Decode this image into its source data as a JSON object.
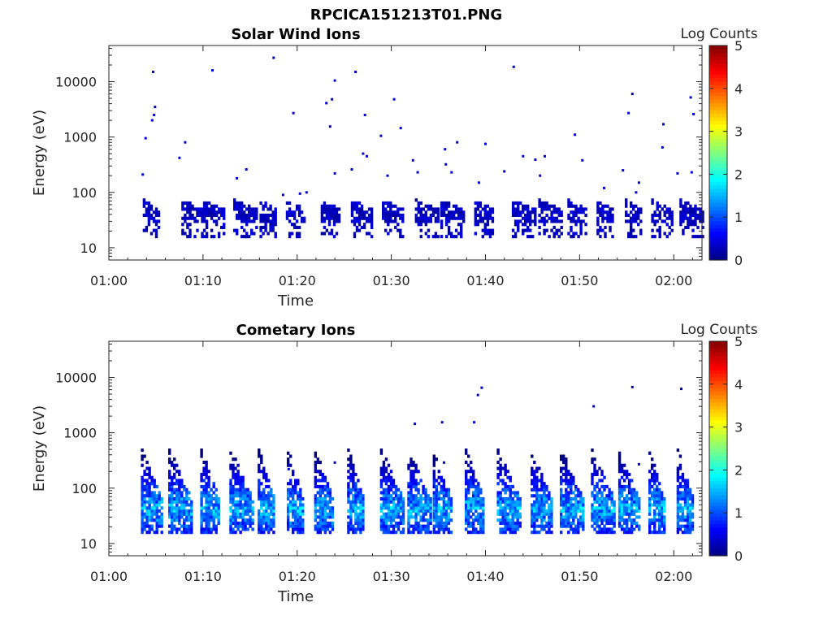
{
  "figure_title": "RPCICA151213T01.PNG",
  "colorbar": {
    "label": "Log Counts",
    "ticks": [
      "0",
      "1",
      "2",
      "3",
      "4",
      "5"
    ],
    "min": 0,
    "max": 5,
    "colormap": "jet"
  },
  "chart_data": [
    {
      "type": "heatmap",
      "title": "Solar Wind Ions",
      "xlabel": "Time",
      "ylabel": "Energy (eV)",
      "x_ticks": [
        "01:00",
        "01:10",
        "01:20",
        "01:30",
        "01:40",
        "01:50",
        "02:00"
      ],
      "y_ticks": [
        "10",
        "100",
        "1000",
        "10000"
      ],
      "y_scale": "log",
      "xlim": [
        "01:00",
        "02:03"
      ],
      "ylim": [
        6,
        45000
      ],
      "color_scale": "log counts 0-5",
      "bursts_start_min": [
        3.6,
        7.7,
        10.0,
        13.2,
        16.0,
        18.8,
        22.5,
        25.7,
        29.0,
        32.5,
        35.2,
        38.8,
        42.8,
        45.6,
        48.7,
        51.8,
        54.8,
        57.6,
        60.6
      ],
      "burst_energy_range_eV": [
        15,
        90
      ],
      "burst_peak_log_counts": 0.5,
      "scattered_points": [
        {
          "t": 4.7,
          "e": 15000
        },
        {
          "t": 11.0,
          "e": 16000
        },
        {
          "t": 17.5,
          "e": 27000
        },
        {
          "t": 24.0,
          "e": 10500
        },
        {
          "t": 26.2,
          "e": 15000
        },
        {
          "t": 43.0,
          "e": 18500
        },
        {
          "t": 4.9,
          "e": 3500
        },
        {
          "t": 4.8,
          "e": 2500
        },
        {
          "t": 4.6,
          "e": 2000
        },
        {
          "t": 3.9,
          "e": 950
        },
        {
          "t": 8.1,
          "e": 800
        },
        {
          "t": 7.5,
          "e": 420
        },
        {
          "t": 3.6,
          "e": 210
        },
        {
          "t": 13.6,
          "e": 180
        },
        {
          "t": 14.6,
          "e": 260
        },
        {
          "t": 19.6,
          "e": 2700
        },
        {
          "t": 23.1,
          "e": 4100
        },
        {
          "t": 23.7,
          "e": 4800
        },
        {
          "t": 23.5,
          "e": 1550
        },
        {
          "t": 24.0,
          "e": 220
        },
        {
          "t": 25.8,
          "e": 260
        },
        {
          "t": 27.2,
          "e": 2500
        },
        {
          "t": 27.0,
          "e": 500
        },
        {
          "t": 27.4,
          "e": 450
        },
        {
          "t": 28.9,
          "e": 1050
        },
        {
          "t": 29.6,
          "e": 200
        },
        {
          "t": 30.3,
          "e": 4800
        },
        {
          "t": 31.0,
          "e": 1450
        },
        {
          "t": 32.3,
          "e": 380
        },
        {
          "t": 32.8,
          "e": 230
        },
        {
          "t": 35.7,
          "e": 600
        },
        {
          "t": 35.8,
          "e": 320
        },
        {
          "t": 36.4,
          "e": 230
        },
        {
          "t": 37.0,
          "e": 800
        },
        {
          "t": 39.3,
          "e": 150
        },
        {
          "t": 40.0,
          "e": 750
        },
        {
          "t": 42.0,
          "e": 240
        },
        {
          "t": 44.0,
          "e": 450
        },
        {
          "t": 45.3,
          "e": 390
        },
        {
          "t": 45.8,
          "e": 200
        },
        {
          "t": 46.3,
          "e": 450
        },
        {
          "t": 49.5,
          "e": 1100
        },
        {
          "t": 50.3,
          "e": 380
        },
        {
          "t": 52.6,
          "e": 120
        },
        {
          "t": 54.6,
          "e": 250
        },
        {
          "t": 55.2,
          "e": 2700
        },
        {
          "t": 55.6,
          "e": 6000
        },
        {
          "t": 56.3,
          "e": 150
        },
        {
          "t": 56.0,
          "e": 100
        },
        {
          "t": 58.9,
          "e": 1700
        },
        {
          "t": 58.8,
          "e": 650
        },
        {
          "t": 60.4,
          "e": 220
        },
        {
          "t": 61.8,
          "e": 5200
        },
        {
          "t": 62.1,
          "e": 2600
        },
        {
          "t": 61.9,
          "e": 230
        },
        {
          "t": 20.3,
          "e": 95
        },
        {
          "t": 18.5,
          "e": 90
        },
        {
          "t": 21.0,
          "e": 100
        }
      ]
    },
    {
      "type": "heatmap",
      "title": "Cometary Ions",
      "xlabel": "Time",
      "ylabel": "Energy (eV)",
      "x_ticks": [
        "01:00",
        "01:10",
        "01:20",
        "01:30",
        "01:40",
        "01:50",
        "02:00"
      ],
      "y_ticks": [
        "10",
        "100",
        "1000",
        "10000"
      ],
      "y_scale": "log",
      "xlim": [
        "01:00",
        "02:03"
      ],
      "ylim": [
        6,
        45000
      ],
      "color_scale": "log counts 0-5",
      "bursts_start_min": [
        3.4,
        6.3,
        9.7,
        12.8,
        15.8,
        18.9,
        21.8,
        25.3,
        28.8,
        31.7,
        34.4,
        37.8,
        41.2,
        44.8,
        47.9,
        51.2,
        54.1,
        57.3,
        60.3
      ],
      "burst_energy_range_eV": [
        15,
        500
      ],
      "burst_peak_log_counts": 1.8,
      "scattered_points": [
        {
          "t": 39.6,
          "e": 6500
        },
        {
          "t": 39.2,
          "e": 4800
        },
        {
          "t": 32.5,
          "e": 1450
        },
        {
          "t": 35.4,
          "e": 1550
        },
        {
          "t": 38.8,
          "e": 1550
        },
        {
          "t": 51.5,
          "e": 3000
        },
        {
          "t": 55.6,
          "e": 6700
        },
        {
          "t": 60.8,
          "e": 6200
        },
        {
          "t": 35.6,
          "e": 290
        },
        {
          "t": 56.3,
          "e": 270
        },
        {
          "t": 19.1,
          "e": 220
        },
        {
          "t": 24.0,
          "e": 290
        }
      ]
    }
  ]
}
